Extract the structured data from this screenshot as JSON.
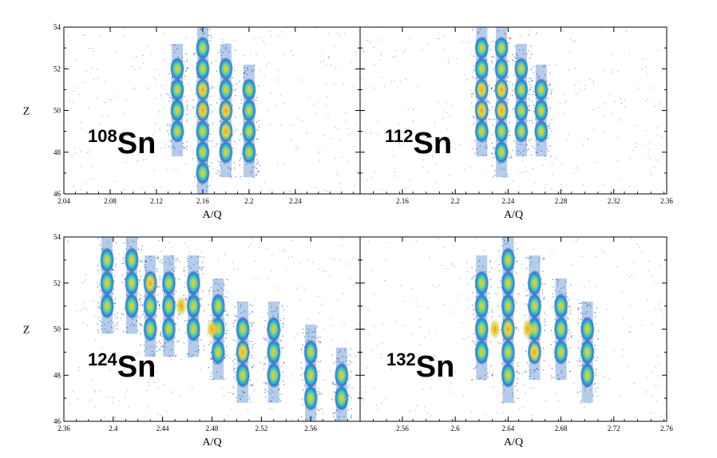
{
  "chart_data": [
    {
      "type": "heatmap",
      "panel": "top-left",
      "isotope": {
        "mass": "108",
        "element": "Sn"
      },
      "xlabel": "A/Q",
      "ylabel": "Z",
      "xlim": [
        2.04,
        2.296
      ],
      "ylim": [
        46,
        54
      ],
      "x_ticks": [
        "2.04",
        "2.08",
        "2.12",
        "2.16",
        "2.2",
        "2.24"
      ],
      "y_ticks": [
        "46",
        "48",
        "50",
        "52",
        "54"
      ],
      "columns": [
        {
          "x": 2.138,
          "z": [
            52,
            51,
            50,
            49
          ]
        },
        {
          "x": 2.16,
          "z": [
            53,
            52,
            51,
            50,
            49,
            48,
            47
          ]
        },
        {
          "x": 2.18,
          "z": [
            52,
            51,
            50,
            49,
            48
          ]
        },
        {
          "x": 2.2,
          "z": [
            51,
            50,
            49,
            48
          ]
        }
      ],
      "hotspots": [
        {
          "x": 2.16,
          "z": 51
        },
        {
          "x": 2.16,
          "z": 50
        },
        {
          "x": 2.18,
          "z": 50
        },
        {
          "x": 2.18,
          "z": 49
        }
      ]
    },
    {
      "type": "heatmap",
      "panel": "top-right",
      "isotope": {
        "mass": "112",
        "element": "Sn"
      },
      "xlabel": "A/Q",
      "ylabel": "",
      "xlim": [
        2.128,
        2.36
      ],
      "ylim": [
        46,
        54
      ],
      "x_ticks": [
        "2.16",
        "2.2",
        "2.24",
        "2.28",
        "2.32",
        "2.36"
      ],
      "y_ticks": [],
      "columns": [
        {
          "x": 2.22,
          "z": [
            53,
            52,
            51,
            50,
            49
          ]
        },
        {
          "x": 2.235,
          "z": [
            53,
            52,
            51,
            50,
            49,
            48
          ]
        },
        {
          "x": 2.25,
          "z": [
            52,
            51,
            50,
            49
          ]
        },
        {
          "x": 2.265,
          "z": [
            51,
            50,
            49
          ]
        }
      ],
      "hotspots": [
        {
          "x": 2.22,
          "z": 51
        },
        {
          "x": 2.22,
          "z": 50
        },
        {
          "x": 2.235,
          "z": 51
        },
        {
          "x": 2.235,
          "z": 50
        }
      ]
    },
    {
      "type": "heatmap",
      "panel": "bottom-left",
      "isotope": {
        "mass": "124",
        "element": "Sn"
      },
      "xlabel": "A/Q",
      "ylabel": "Z",
      "xlim": [
        2.36,
        2.6
      ],
      "ylim": [
        46,
        54
      ],
      "x_ticks": [
        "2.36",
        "2.4",
        "2.44",
        "2.48",
        "2.52",
        "2.56"
      ],
      "y_ticks": [
        "46",
        "48",
        "50",
        "52",
        "54"
      ],
      "columns": [
        {
          "x": 2.395,
          "z": [
            53,
            52,
            51
          ]
        },
        {
          "x": 2.415,
          "z": [
            53,
            52,
            51
          ]
        },
        {
          "x": 2.43,
          "z": [
            52,
            51,
            50
          ]
        },
        {
          "x": 2.445,
          "z": [
            52,
            51,
            50
          ]
        },
        {
          "x": 2.465,
          "z": [
            52,
            51,
            50
          ]
        },
        {
          "x": 2.485,
          "z": [
            51,
            50,
            49
          ]
        },
        {
          "x": 2.505,
          "z": [
            50,
            49,
            48
          ]
        },
        {
          "x": 2.53,
          "z": [
            50,
            49,
            48
          ]
        },
        {
          "x": 2.56,
          "z": [
            49,
            48,
            47
          ]
        },
        {
          "x": 2.585,
          "z": [
            48,
            47
          ]
        }
      ],
      "hotspots": [
        {
          "x": 2.43,
          "z": 52
        },
        {
          "x": 2.455,
          "z": 51
        },
        {
          "x": 2.48,
          "z": 50
        },
        {
          "x": 2.505,
          "z": 49
        }
      ]
    },
    {
      "type": "heatmap",
      "panel": "bottom-right",
      "isotope": {
        "mass": "132",
        "element": "Sn"
      },
      "xlabel": "A/Q",
      "ylabel": "",
      "xlim": [
        2.528,
        2.76
      ],
      "ylim": [
        46,
        54
      ],
      "x_ticks": [
        "2.56",
        "2.6",
        "2.64",
        "2.68",
        "2.72",
        "2.76"
      ],
      "y_ticks": [],
      "columns": [
        {
          "x": 2.62,
          "z": [
            52,
            51,
            50,
            49
          ]
        },
        {
          "x": 2.64,
          "z": [
            53,
            52,
            51,
            50,
            49,
            48
          ]
        },
        {
          "x": 2.66,
          "z": [
            52,
            51,
            50,
            49
          ]
        },
        {
          "x": 2.68,
          "z": [
            51,
            50,
            49
          ]
        },
        {
          "x": 2.7,
          "z": [
            50,
            49,
            48
          ]
        }
      ],
      "hotspots": [
        {
          "x": 2.63,
          "z": 50
        },
        {
          "x": 2.64,
          "z": 50
        },
        {
          "x": 2.655,
          "z": 50
        },
        {
          "x": 2.66,
          "z": 49
        }
      ]
    }
  ],
  "colors": {
    "low": "#1f3fa6",
    "mid_low": "#2a8fd6",
    "mid": "#4fc3c8",
    "mid_high": "#8fd36a",
    "high": "#f5d13a",
    "peak": "#f29a2e",
    "frame": "#000000",
    "background": "#ffffff"
  }
}
